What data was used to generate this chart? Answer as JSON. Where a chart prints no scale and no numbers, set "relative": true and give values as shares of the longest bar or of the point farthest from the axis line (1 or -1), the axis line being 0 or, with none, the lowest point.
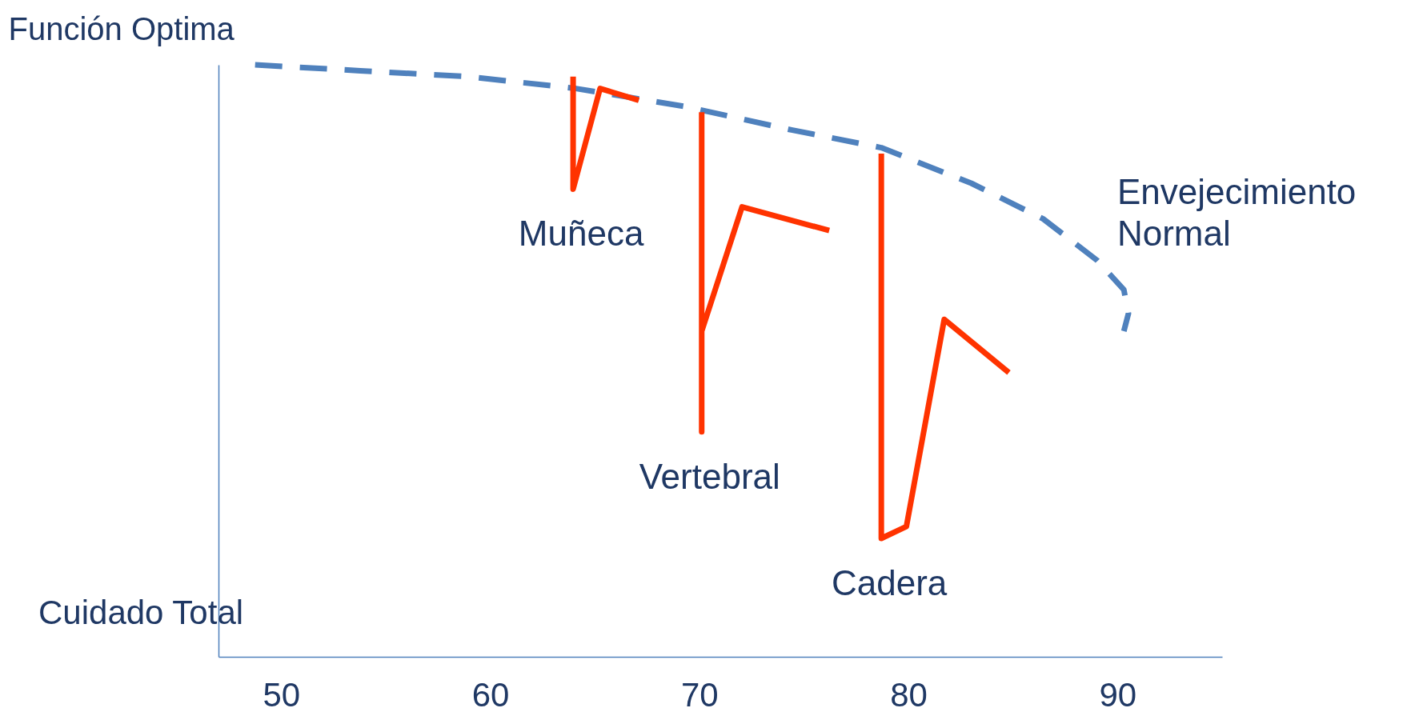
{
  "chart_data": {
    "type": "line",
    "relative": true,
    "ylabel": "Función Optima",
    "annotations": [
      "Cuidado Total"
    ],
    "xlim": [
      47,
      95
    ],
    "xticks": [
      50,
      60,
      70,
      80,
      90
    ],
    "grid": false,
    "series": [
      {
        "name": "Envejecimiento Normal",
        "color": "#4f81bd",
        "line_style": "dashed",
        "x": [
          48.75,
          53.78,
          58.94,
          64.09,
          69.25,
          74.4,
          78.7,
          83.0,
          86.43,
          89.01,
          90.3,
          90.52,
          90.3
        ],
        "values": [
          1.0,
          0.99,
          0.98,
          0.96,
          0.93,
          0.89,
          0.86,
          0.8,
          0.74,
          0.67,
          0.62,
          0.58,
          0.55
        ]
      },
      {
        "name": "Muñeca",
        "color": "#ff3300",
        "line_style": "solid",
        "x": [
          63.96,
          63.96,
          65.25,
          67.1
        ],
        "values": [
          0.98,
          0.79,
          0.96,
          0.94
        ]
      },
      {
        "name": "Vertebral",
        "color": "#ff3300",
        "line_style": "solid",
        "x": [
          70.11,
          70.11,
          70.11,
          72.04,
          76.21
        ],
        "values": [
          0.92,
          0.38,
          0.55,
          0.76,
          0.72
        ]
      },
      {
        "name": "Cadera",
        "color": "#ff3300",
        "line_style": "solid",
        "x": [
          78.7,
          78.7,
          79.9,
          81.71,
          84.8
        ],
        "values": [
          0.85,
          0.2,
          0.22,
          0.57,
          0.48
        ]
      }
    ]
  }
}
